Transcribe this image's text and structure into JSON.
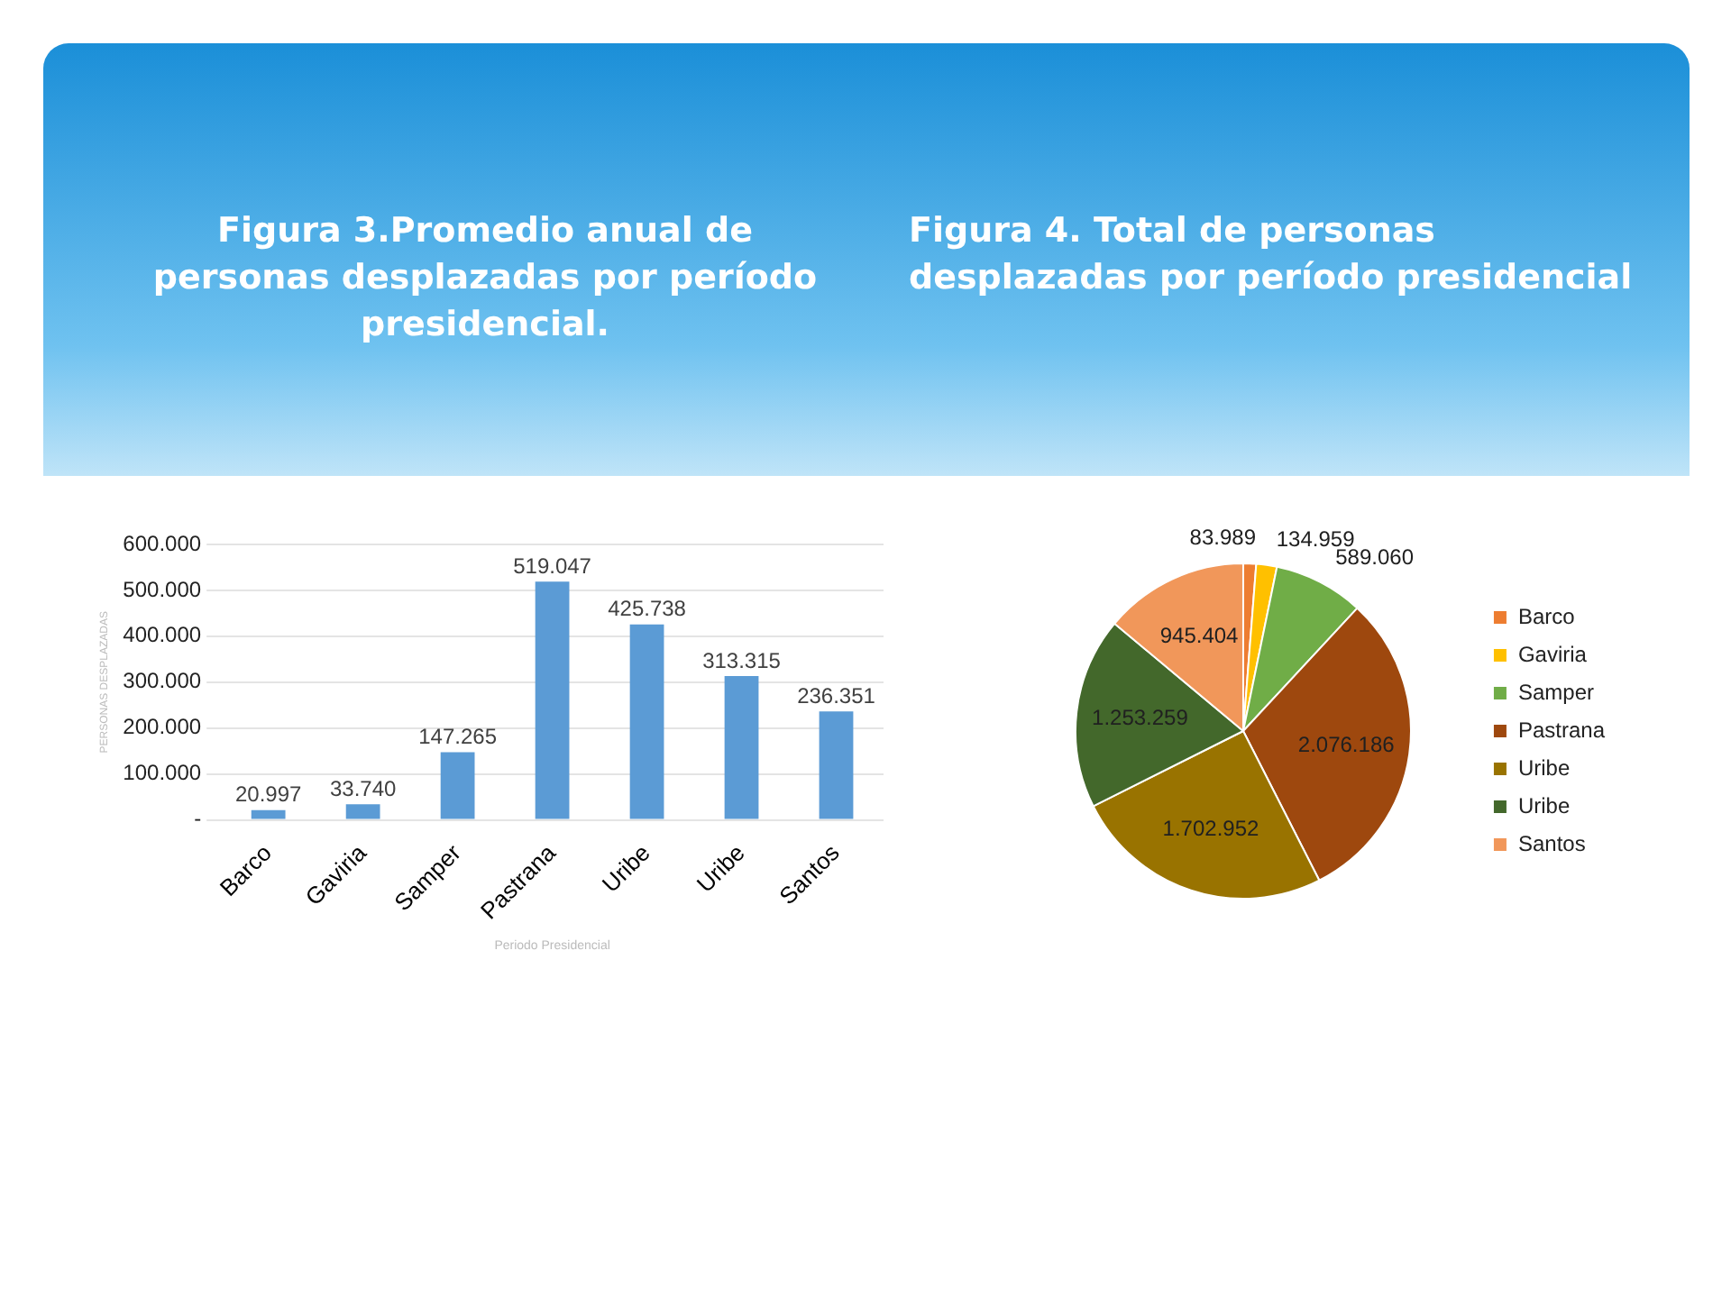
{
  "chart_data": [
    {
      "type": "bar",
      "title": "Figura 3.Promedio anual de personas desplazadas por período presidencial.",
      "xlabel": "Periodo Presidencial",
      "ylabel": "PERSONAS DESPLAZADAS",
      "categories": [
        "Barco",
        "Gaviria",
        "Samper",
        "Pastrana",
        "Uribe",
        "Uribe",
        "Santos"
      ],
      "values": [
        20997,
        33740,
        147265,
        519047,
        425738,
        313315,
        236351
      ],
      "value_labels": [
        "20.997",
        "33.740",
        "147.265",
        "519.047",
        "425.738",
        "313.315",
        "236.351"
      ],
      "color": "#5b9bd5",
      "ylim": [
        0,
        600000
      ],
      "yticks": [
        {
          "value": 0,
          "label": "-"
        },
        {
          "value": 100000,
          "label": "100.000"
        },
        {
          "value": 200000,
          "label": "200.000"
        },
        {
          "value": 300000,
          "label": "300.000"
        },
        {
          "value": 400000,
          "label": "400.000"
        },
        {
          "value": 500000,
          "label": "500.000"
        },
        {
          "value": 600000,
          "label": "600.000"
        }
      ],
      "grid": "y",
      "legend": false
    },
    {
      "type": "pie",
      "title": "Figura 4. Total de personas desplazadas por período presidencial",
      "categories": [
        "Barco",
        "Gaviria",
        "Samper",
        "Pastrana",
        "Uribe",
        "Uribe",
        "Santos"
      ],
      "values": [
        83989,
        134959,
        589060,
        2076186,
        1702952,
        1253259,
        945404
      ],
      "value_labels": [
        "83.989",
        "134.959",
        "589.060",
        "2.076.186",
        "1.702.952",
        "1.253.259",
        "945.404"
      ],
      "colors": [
        "#ed7d31",
        "#ffc000",
        "#70ad47",
        "#9e480e",
        "#997300",
        "#43682b",
        "#f1975a"
      ],
      "legend": "right"
    }
  ]
}
